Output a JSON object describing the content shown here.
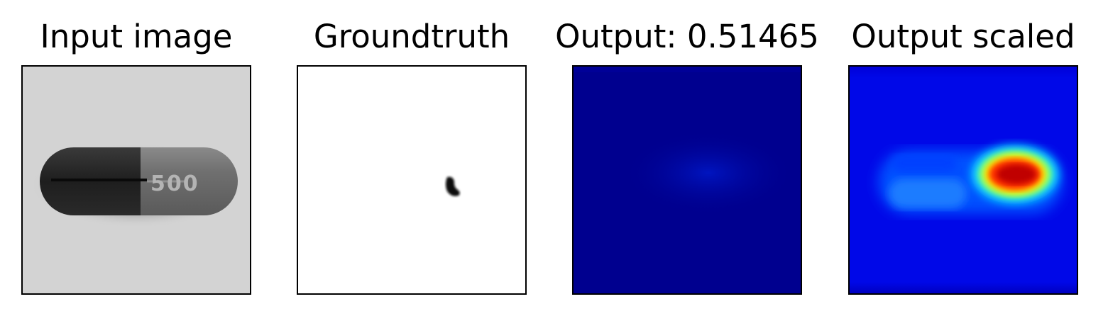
{
  "panels": [
    {
      "title": "Input image"
    },
    {
      "title": "Groundtruth"
    },
    {
      "title": "Output: 0.51465"
    },
    {
      "title": "Output scaled"
    }
  ],
  "input_image": {
    "capsule_imprint": "500",
    "background_color": "#d4d4d4",
    "cap_color": "#262626",
    "body_color": "#6f6f6f"
  },
  "colormap": {
    "low": "#00008f",
    "mid": "#0050ff",
    "high": "#c00000"
  }
}
